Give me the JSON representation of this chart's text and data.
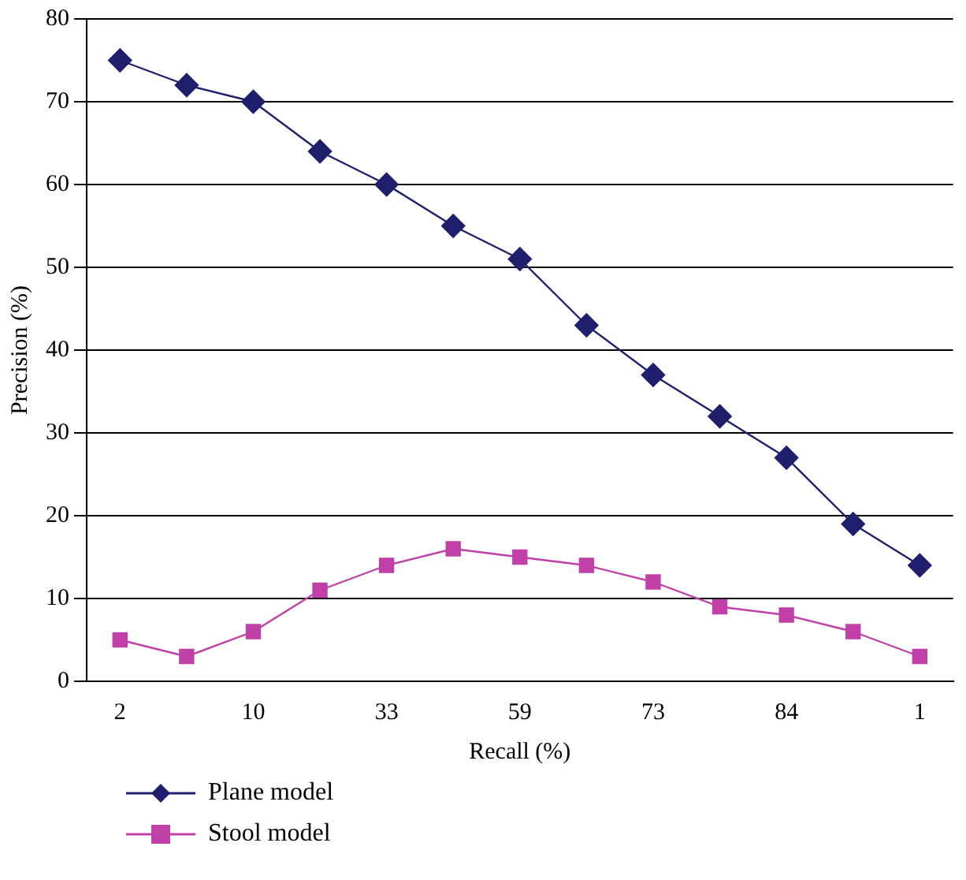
{
  "chart_data": {
    "type": "line",
    "xlabel": "Recall (%)",
    "ylabel": "Precision (%)",
    "categories": [
      "2",
      null,
      "10",
      null,
      "33",
      null,
      "59",
      null,
      "73",
      null,
      "84",
      null,
      "1"
    ],
    "series": [
      {
        "name": "Plane model",
        "color": "#1f1f6e",
        "marker": "diamond",
        "values": [
          75,
          72,
          70,
          64,
          60,
          55,
          51,
          43,
          37,
          32,
          27,
          19,
          14
        ]
      },
      {
        "name": "Stool model",
        "color": "#c040a8",
        "marker": "square",
        "values": [
          5,
          3,
          6,
          11,
          14,
          16,
          15,
          14,
          12,
          9,
          8,
          6,
          3
        ]
      }
    ],
    "ylim": [
      0,
      80
    ],
    "yticks": [
      0,
      10,
      20,
      30,
      40,
      50,
      60,
      70,
      80
    ],
    "grid": "y",
    "legend": "bottom left"
  }
}
